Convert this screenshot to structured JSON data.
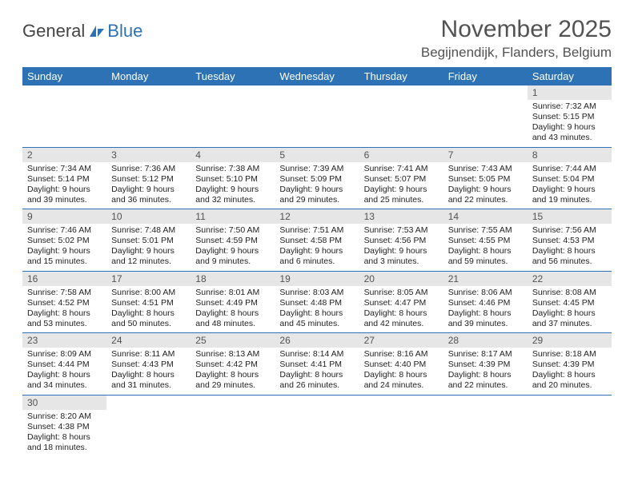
{
  "logo": {
    "textDark": "General",
    "textBlue": "Blue"
  },
  "header": {
    "monthTitle": "November 2025",
    "location": "Begijnendijk, Flanders, Belgium"
  },
  "colors": {
    "headerBg": "#2d72b5",
    "headerFg": "#ffffff",
    "daynumBg": "#e6e6e6",
    "rowBorder": "#2d72b5"
  },
  "dayNames": [
    "Sunday",
    "Monday",
    "Tuesday",
    "Wednesday",
    "Thursday",
    "Friday",
    "Saturday"
  ],
  "weeks": [
    [
      null,
      null,
      null,
      null,
      null,
      null,
      {
        "n": "1",
        "sr": "7:32 AM",
        "ss": "5:15 PM",
        "dl": "9 hours and 43 minutes."
      }
    ],
    [
      {
        "n": "2",
        "sr": "7:34 AM",
        "ss": "5:14 PM",
        "dl": "9 hours and 39 minutes."
      },
      {
        "n": "3",
        "sr": "7:36 AM",
        "ss": "5:12 PM",
        "dl": "9 hours and 36 minutes."
      },
      {
        "n": "4",
        "sr": "7:38 AM",
        "ss": "5:10 PM",
        "dl": "9 hours and 32 minutes."
      },
      {
        "n": "5",
        "sr": "7:39 AM",
        "ss": "5:09 PM",
        "dl": "9 hours and 29 minutes."
      },
      {
        "n": "6",
        "sr": "7:41 AM",
        "ss": "5:07 PM",
        "dl": "9 hours and 25 minutes."
      },
      {
        "n": "7",
        "sr": "7:43 AM",
        "ss": "5:05 PM",
        "dl": "9 hours and 22 minutes."
      },
      {
        "n": "8",
        "sr": "7:44 AM",
        "ss": "5:04 PM",
        "dl": "9 hours and 19 minutes."
      }
    ],
    [
      {
        "n": "9",
        "sr": "7:46 AM",
        "ss": "5:02 PM",
        "dl": "9 hours and 15 minutes."
      },
      {
        "n": "10",
        "sr": "7:48 AM",
        "ss": "5:01 PM",
        "dl": "9 hours and 12 minutes."
      },
      {
        "n": "11",
        "sr": "7:50 AM",
        "ss": "4:59 PM",
        "dl": "9 hours and 9 minutes."
      },
      {
        "n": "12",
        "sr": "7:51 AM",
        "ss": "4:58 PM",
        "dl": "9 hours and 6 minutes."
      },
      {
        "n": "13",
        "sr": "7:53 AM",
        "ss": "4:56 PM",
        "dl": "9 hours and 3 minutes."
      },
      {
        "n": "14",
        "sr": "7:55 AM",
        "ss": "4:55 PM",
        "dl": "8 hours and 59 minutes."
      },
      {
        "n": "15",
        "sr": "7:56 AM",
        "ss": "4:53 PM",
        "dl": "8 hours and 56 minutes."
      }
    ],
    [
      {
        "n": "16",
        "sr": "7:58 AM",
        "ss": "4:52 PM",
        "dl": "8 hours and 53 minutes."
      },
      {
        "n": "17",
        "sr": "8:00 AM",
        "ss": "4:51 PM",
        "dl": "8 hours and 50 minutes."
      },
      {
        "n": "18",
        "sr": "8:01 AM",
        "ss": "4:49 PM",
        "dl": "8 hours and 48 minutes."
      },
      {
        "n": "19",
        "sr": "8:03 AM",
        "ss": "4:48 PM",
        "dl": "8 hours and 45 minutes."
      },
      {
        "n": "20",
        "sr": "8:05 AM",
        "ss": "4:47 PM",
        "dl": "8 hours and 42 minutes."
      },
      {
        "n": "21",
        "sr": "8:06 AM",
        "ss": "4:46 PM",
        "dl": "8 hours and 39 minutes."
      },
      {
        "n": "22",
        "sr": "8:08 AM",
        "ss": "4:45 PM",
        "dl": "8 hours and 37 minutes."
      }
    ],
    [
      {
        "n": "23",
        "sr": "8:09 AM",
        "ss": "4:44 PM",
        "dl": "8 hours and 34 minutes."
      },
      {
        "n": "24",
        "sr": "8:11 AM",
        "ss": "4:43 PM",
        "dl": "8 hours and 31 minutes."
      },
      {
        "n": "25",
        "sr": "8:13 AM",
        "ss": "4:42 PM",
        "dl": "8 hours and 29 minutes."
      },
      {
        "n": "26",
        "sr": "8:14 AM",
        "ss": "4:41 PM",
        "dl": "8 hours and 26 minutes."
      },
      {
        "n": "27",
        "sr": "8:16 AM",
        "ss": "4:40 PM",
        "dl": "8 hours and 24 minutes."
      },
      {
        "n": "28",
        "sr": "8:17 AM",
        "ss": "4:39 PM",
        "dl": "8 hours and 22 minutes."
      },
      {
        "n": "29",
        "sr": "8:18 AM",
        "ss": "4:39 PM",
        "dl": "8 hours and 20 minutes."
      }
    ],
    [
      {
        "n": "30",
        "sr": "8:20 AM",
        "ss": "4:38 PM",
        "dl": "8 hours and 18 minutes."
      },
      null,
      null,
      null,
      null,
      null,
      null
    ]
  ],
  "labels": {
    "sunrise": "Sunrise: ",
    "sunset": "Sunset: ",
    "daylight": "Daylight: "
  }
}
